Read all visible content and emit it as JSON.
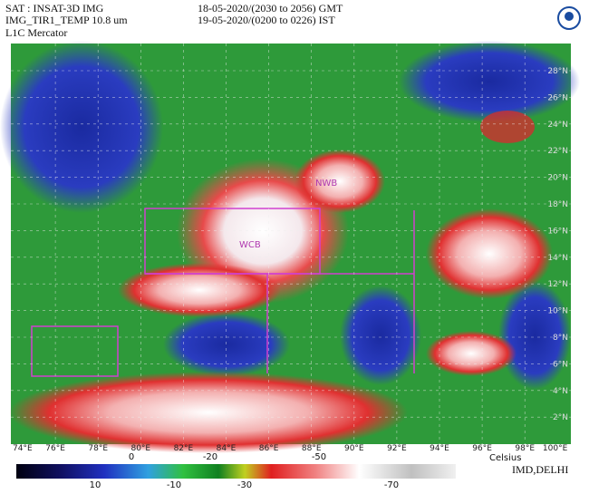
{
  "header": {
    "satellite": "SAT : INSAT-3D IMG",
    "product": "IMG_TIR1_TEMP 10.8 um",
    "projection": "L1C Mercator",
    "time_gmt": "18-05-2020/(2030 to 2056) GMT",
    "time_ist": "19-05-2020/(0200 to 0226) IST"
  },
  "map": {
    "lat_labels": [
      "28°N",
      "26°N",
      "24°N",
      "22°N",
      "20°N",
      "18°N",
      "16°N",
      "14°N",
      "12°N",
      "10°N",
      "8°N",
      "6°N",
      "4°N",
      "2°N"
    ],
    "lon_labels": [
      "74°E",
      "76°E",
      "78°E",
      "80°E",
      "82°E",
      "84°E",
      "86°E",
      "88°E",
      "90°E",
      "92°E",
      "94°E",
      "96°E",
      "98°E",
      "100°E"
    ],
    "regions": [
      "WCB",
      "NWB"
    ]
  },
  "colorbar": {
    "unit": "Celsius",
    "top_labels": [
      "0",
      "-20",
      "-50"
    ],
    "bottom_labels": [
      "10",
      "-10",
      "-30",
      "-70"
    ],
    "credit": "IMD,DELHI"
  }
}
